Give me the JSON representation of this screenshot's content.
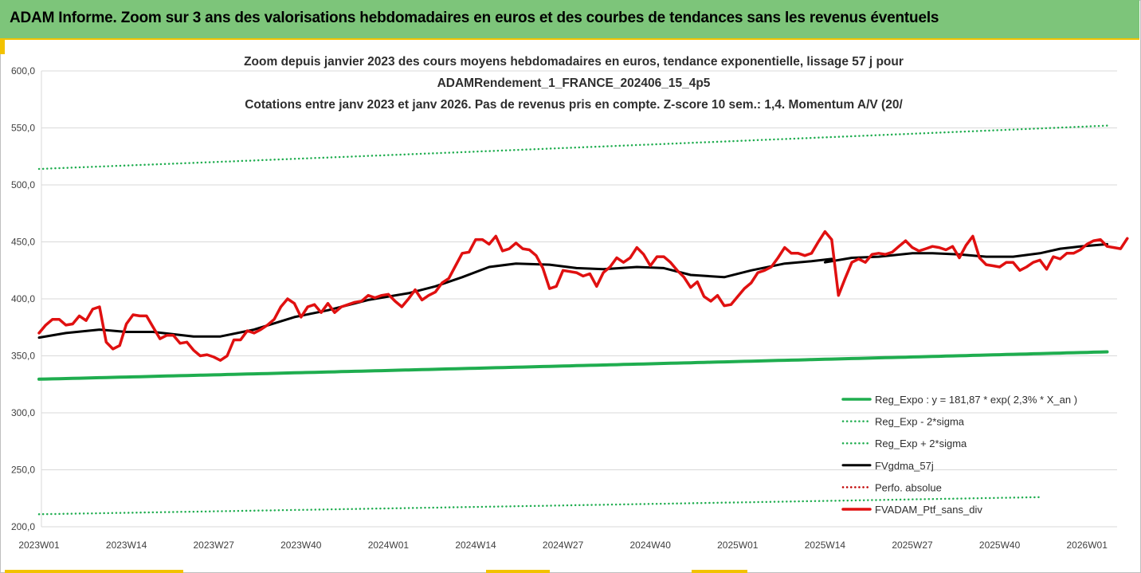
{
  "banner": {
    "title": "ADAM Informe. Zoom sur 3 ans des valorisations hebdomadaires en euros et des courbes de tendances sans les revenus éventuels"
  },
  "colors": {
    "banner_bg": "#7dc57a",
    "accent": "#f2c200",
    "reg_expo": "#1fad4f",
    "price": "#e01010",
    "smoothing": "#000000",
    "perf_absolue": "#c00000"
  },
  "chart_data": {
    "type": "line",
    "title_lines": [
      "Zoom depuis janvier 2023 des cours moyens hebdomadaires  en euros, tendance exponentielle, lissage 57 j pour",
      "ADAMRendement_1_FRANCE_202406_15_4p5",
      "Cotations entre janv 2023 et janv 2026. Pas de revenus pris en compte. Z-score 10 sem.: 1,4. Momentum A/V (20/"
    ],
    "ylim": [
      200,
      600
    ],
    "y_ticks": [
      "200,0",
      "250,0",
      "300,0",
      "350,0",
      "400,0",
      "450,0",
      "500,0",
      "550,0",
      "600,0"
    ],
    "x_tick_labels": [
      "2023W01",
      "2023W14",
      "2023W27",
      "2023W40",
      "2024W01",
      "2024W14",
      "2024W27",
      "2024W40",
      "2025W01",
      "2025W14",
      "2025W27",
      "2025W40",
      "2026W01"
    ],
    "x_week_count": 160,
    "legend_position": "bottom-right",
    "grid": "horizontal",
    "series": [
      {
        "name": "Reg_Expo : y = 181,87 * exp( 2,3% *  X_an )",
        "key": "reg_expo",
        "style": "solid-thick",
        "start": [
          1,
          329.5
        ],
        "end": [
          160,
          353.5
        ]
      },
      {
        "name": "Reg_Exp - 2*sigma",
        "key": "reg_minus",
        "style": "dotted",
        "start": [
          1,
          211
        ],
        "end": [
          150,
          226
        ]
      },
      {
        "name": "Reg_Exp + 2*sigma",
        "key": "reg_plus",
        "style": "dotted",
        "start": [
          1,
          514
        ],
        "end": [
          160,
          552
        ]
      },
      {
        "name": "FVgdma_57j",
        "key": "smoothing",
        "style": "solid",
        "points": [
          [
            1,
            366
          ],
          [
            5,
            370
          ],
          [
            10,
            373
          ],
          [
            14,
            371
          ],
          [
            18,
            371
          ],
          [
            24,
            367
          ],
          [
            28,
            367
          ],
          [
            33,
            373
          ],
          [
            39,
            384
          ],
          [
            44,
            390
          ],
          [
            50,
            399
          ],
          [
            56,
            405
          ],
          [
            60,
            411
          ],
          [
            64,
            419
          ],
          [
            68,
            428
          ],
          [
            72,
            431
          ],
          [
            77,
            430
          ],
          [
            81,
            427
          ],
          [
            85,
            426
          ],
          [
            90,
            428
          ],
          [
            94,
            427
          ],
          [
            98,
            421
          ],
          [
            103,
            419
          ],
          [
            107,
            425
          ],
          [
            112,
            431
          ],
          [
            116,
            433
          ],
          [
            119,
            435
          ],
          [
            118,
            432
          ],
          [
            122,
            436
          ],
          [
            126,
            437
          ],
          [
            131,
            440
          ],
          [
            134,
            440
          ],
          [
            138,
            439
          ],
          [
            142,
            437
          ],
          [
            146,
            437
          ],
          [
            150,
            440
          ],
          [
            153,
            444
          ],
          [
            156,
            446
          ],
          [
            160,
            448
          ]
        ]
      },
      {
        "name": "Perfo. absolue",
        "key": "perf_absolue",
        "style": "dotted",
        "points": []
      },
      {
        "name": "FVADAM_Ptf_sans_div",
        "key": "price",
        "style": "solid-thick",
        "points": [
          [
            1,
            370
          ],
          [
            2,
            377
          ],
          [
            3,
            382
          ],
          [
            4,
            382
          ],
          [
            5,
            377
          ],
          [
            6,
            378
          ],
          [
            7,
            385
          ],
          [
            8,
            381
          ],
          [
            9,
            391
          ],
          [
            10,
            393
          ],
          [
            11,
            362
          ],
          [
            12,
            356
          ],
          [
            13,
            359
          ],
          [
            14,
            378
          ],
          [
            15,
            386
          ],
          [
            16,
            385
          ],
          [
            17,
            385
          ],
          [
            18,
            375
          ],
          [
            19,
            365
          ],
          [
            20,
            368
          ],
          [
            21,
            368
          ],
          [
            22,
            361
          ],
          [
            23,
            362
          ],
          [
            24,
            355
          ],
          [
            25,
            350
          ],
          [
            26,
            351
          ],
          [
            27,
            349
          ],
          [
            28,
            346
          ],
          [
            29,
            350
          ],
          [
            30,
            364
          ],
          [
            31,
            364
          ],
          [
            32,
            372
          ],
          [
            33,
            370
          ],
          [
            34,
            373
          ],
          [
            35,
            377
          ],
          [
            36,
            382
          ],
          [
            37,
            393
          ],
          [
            38,
            400
          ],
          [
            39,
            396
          ],
          [
            40,
            384
          ],
          [
            41,
            393
          ],
          [
            42,
            395
          ],
          [
            43,
            388
          ],
          [
            44,
            396
          ],
          [
            45,
            388
          ],
          [
            46,
            393
          ],
          [
            47,
            395
          ],
          [
            48,
            397
          ],
          [
            49,
            398
          ],
          [
            50,
            403
          ],
          [
            51,
            401
          ],
          [
            52,
            403
          ],
          [
            53,
            404
          ],
          [
            54,
            398
          ],
          [
            55,
            393
          ],
          [
            56,
            400
          ],
          [
            57,
            408
          ],
          [
            58,
            399
          ],
          [
            59,
            403
          ],
          [
            60,
            406
          ],
          [
            61,
            414
          ],
          [
            62,
            418
          ],
          [
            63,
            429
          ],
          [
            64,
            440
          ],
          [
            65,
            441
          ],
          [
            66,
            452
          ],
          [
            67,
            452
          ],
          [
            68,
            448
          ],
          [
            69,
            455
          ],
          [
            70,
            442
          ],
          [
            71,
            444
          ],
          [
            72,
            449
          ],
          [
            73,
            444
          ],
          [
            74,
            443
          ],
          [
            75,
            438
          ],
          [
            76,
            427
          ],
          [
            77,
            409
          ],
          [
            78,
            411
          ],
          [
            79,
            425
          ],
          [
            80,
            424
          ],
          [
            81,
            423
          ],
          [
            82,
            420
          ],
          [
            83,
            422
          ],
          [
            84,
            411
          ],
          [
            85,
            423
          ],
          [
            86,
            428
          ],
          [
            87,
            436
          ],
          [
            88,
            432
          ],
          [
            89,
            436
          ],
          [
            90,
            445
          ],
          [
            91,
            439
          ],
          [
            92,
            429
          ],
          [
            93,
            437
          ],
          [
            94,
            437
          ],
          [
            95,
            432
          ],
          [
            96,
            425
          ],
          [
            97,
            419
          ],
          [
            98,
            410
          ],
          [
            99,
            415
          ],
          [
            100,
            402
          ],
          [
            101,
            398
          ],
          [
            102,
            403
          ],
          [
            103,
            394
          ],
          [
            104,
            395
          ],
          [
            105,
            402
          ],
          [
            106,
            409
          ],
          [
            107,
            414
          ],
          [
            108,
            423
          ],
          [
            109,
            425
          ],
          [
            110,
            428
          ],
          [
            111,
            436
          ],
          [
            112,
            445
          ],
          [
            113,
            440
          ],
          [
            114,
            440
          ],
          [
            115,
            438
          ],
          [
            116,
            440
          ],
          [
            117,
            450
          ],
          [
            118,
            459
          ],
          [
            119,
            452
          ],
          [
            120,
            403
          ],
          [
            121,
            418
          ],
          [
            122,
            432
          ],
          [
            123,
            435
          ],
          [
            124,
            432
          ],
          [
            125,
            439
          ],
          [
            126,
            440
          ],
          [
            127,
            439
          ],
          [
            128,
            441
          ],
          [
            129,
            446
          ],
          [
            130,
            451
          ],
          [
            131,
            445
          ],
          [
            132,
            442
          ],
          [
            133,
            444
          ],
          [
            134,
            446
          ],
          [
            135,
            445
          ],
          [
            136,
            443
          ],
          [
            137,
            446
          ],
          [
            138,
            436
          ],
          [
            139,
            447
          ],
          [
            140,
            455
          ],
          [
            141,
            436
          ],
          [
            142,
            430
          ],
          [
            143,
            429
          ],
          [
            144,
            428
          ],
          [
            145,
            432
          ],
          [
            146,
            432
          ],
          [
            147,
            425
          ],
          [
            148,
            428
          ],
          [
            149,
            432
          ],
          [
            150,
            434
          ],
          [
            151,
            426
          ],
          [
            152,
            437
          ],
          [
            153,
            435
          ],
          [
            154,
            440
          ],
          [
            155,
            440
          ],
          [
            156,
            443
          ],
          [
            157,
            448
          ],
          [
            158,
            451
          ],
          [
            159,
            452
          ],
          [
            160,
            446
          ],
          [
            161,
            445
          ],
          [
            162,
            444
          ],
          [
            163,
            453
          ]
        ]
      }
    ]
  }
}
